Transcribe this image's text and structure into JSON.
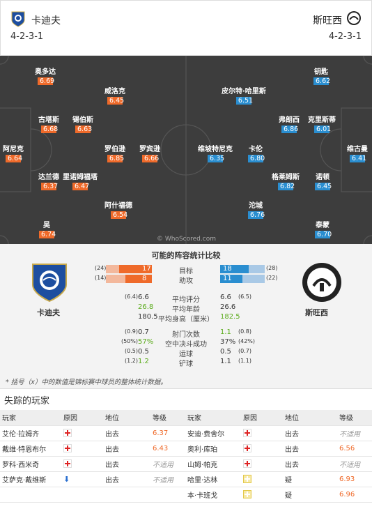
{
  "header": {
    "home_name": "卡迪夫",
    "away_name": "斯旺西",
    "home_formation": "4-2-3-1",
    "away_formation": "4-2-3-1"
  },
  "pitch": {
    "watermark": "© WhoScored.com",
    "home_players": [
      {
        "name": "奥多达",
        "rating": "6.69"
      },
      {
        "name": "威洛克",
        "rating": "6.45"
      },
      {
        "name": "古塔斯",
        "rating": "6.68"
      },
      {
        "name": "锡伯斯",
        "rating": "6.63"
      },
      {
        "name": "阿尼克",
        "rating": "6.64"
      },
      {
        "name": "罗伯逊",
        "rating": "6.85"
      },
      {
        "name": "罗宾逊",
        "rating": "6.66"
      },
      {
        "name": "达兰德",
        "rating": "6.37"
      },
      {
        "name": "里诺姆福塔",
        "rating": "6.47"
      },
      {
        "name": "阿什福德",
        "rating": "6.54"
      },
      {
        "name": "吴",
        "rating": "6.74"
      }
    ],
    "away_players": [
      {
        "name": "钥匙",
        "rating": "6.62"
      },
      {
        "name": "皮尔特·哈里斯",
        "rating": "6.51"
      },
      {
        "name": "弗朗西",
        "rating": "6.86"
      },
      {
        "name": "克里斯蒂",
        "rating": "6.01"
      },
      {
        "name": "维坡特尼克",
        "rating": "6.35"
      },
      {
        "name": "卡伦",
        "rating": "6.80"
      },
      {
        "name": "维古曼",
        "rating": "6.41"
      },
      {
        "name": "格莱姆斯",
        "rating": "6.82"
      },
      {
        "name": "诺顿",
        "rating": "6.45"
      },
      {
        "name": "沱城",
        "rating": "6.76"
      },
      {
        "name": "泰蒙",
        "rating": "6.70"
      }
    ]
  },
  "compare": {
    "title": "可能的阵容统计比较",
    "home_label": "卡迪夫",
    "away_label": "斯旺西",
    "bars": [
      {
        "label": "目标",
        "home": "17",
        "home_total": "(24)",
        "away": "18",
        "away_total": "(28)",
        "home_frac": 0.71,
        "away_frac": 0.64
      },
      {
        "label": "助攻",
        "home": "8",
        "home_total": "(14)",
        "away": "11",
        "away_total": "(22)",
        "home_frac": 0.57,
        "away_frac": 0.5
      }
    ],
    "stats": [
      {
        "label": "平均评分",
        "home_small": "(6.4)",
        "home": "6.6",
        "away": "6.6",
        "away_small": "(6.5)",
        "home_green": false,
        "away_green": false
      },
      {
        "label": "平均年龄",
        "home_small": "",
        "home": "26.8",
        "away": "26.6",
        "away_small": "",
        "home_green": true,
        "away_green": false
      },
      {
        "label": "平均身高（厘米）",
        "home_small": "",
        "home": "180.5",
        "away": "182.5",
        "away_small": "",
        "home_green": false,
        "away_green": true
      },
      {
        "label": "射门次数",
        "home_small": "(0.9)",
        "home": "0.7",
        "away": "1.1",
        "away_small": "(0.8)",
        "home_green": false,
        "away_green": true
      },
      {
        "label": "空中决斗成功",
        "home_small": "(50%)",
        "home": "57%",
        "away": "37%",
        "away_small": "(42%)",
        "home_green": true,
        "away_green": false
      },
      {
        "label": "运球",
        "home_small": "(0.5)",
        "home": "0.5",
        "away": "0.5",
        "away_small": "(0.7)",
        "home_green": false,
        "away_green": false
      },
      {
        "label": "铲球",
        "home_small": "(1.2)",
        "home": "1.2",
        "away": "1.1",
        "away_small": "(1.1)",
        "home_green": true,
        "away_green": false
      }
    ],
    "note": "* 括号（x）中的数值是锦标赛中球员的整体统计数据。"
  },
  "missing": {
    "title": "失踪的玩家",
    "headers": [
      "玩家",
      "原因",
      "地位",
      "等级",
      "玩家",
      "原因",
      "地位",
      "等级"
    ],
    "rows": [
      {
        "h_name": "艾伦·拉姆齐",
        "h_reason": "cross",
        "h_status": "出去",
        "h_rating": "6.37",
        "a_name": "安迪·费舍尔",
        "a_reason": "cross",
        "a_status": "出去",
        "a_rating": "不适用"
      },
      {
        "h_name": "戴维·特恩布尔",
        "h_reason": "cross",
        "h_status": "出去",
        "h_rating": "6.43",
        "a_name": "奥利·库珀",
        "a_reason": "cross",
        "a_status": "出去",
        "a_rating": "6.56"
      },
      {
        "h_name": "罗科·西米奇",
        "h_reason": "cross",
        "h_status": "出去",
        "h_rating": "不适用",
        "a_name": "山姆·帕克",
        "a_reason": "cross",
        "a_status": "出去",
        "a_rating": "不适用"
      },
      {
        "h_name": "艾萨克·戴维斯",
        "h_reason": "arrow",
        "h_status": "出去",
        "h_rating": "不适用",
        "a_name": "哈里·达林",
        "a_reason": "doubt",
        "a_status": "疑",
        "a_rating": "6.93"
      },
      {
        "h_name": "",
        "h_reason": "",
        "h_status": "",
        "h_rating": "",
        "a_name": "本·卡班戈",
        "a_reason": "doubt",
        "a_status": "疑",
        "a_rating": "6.96"
      }
    ]
  }
}
